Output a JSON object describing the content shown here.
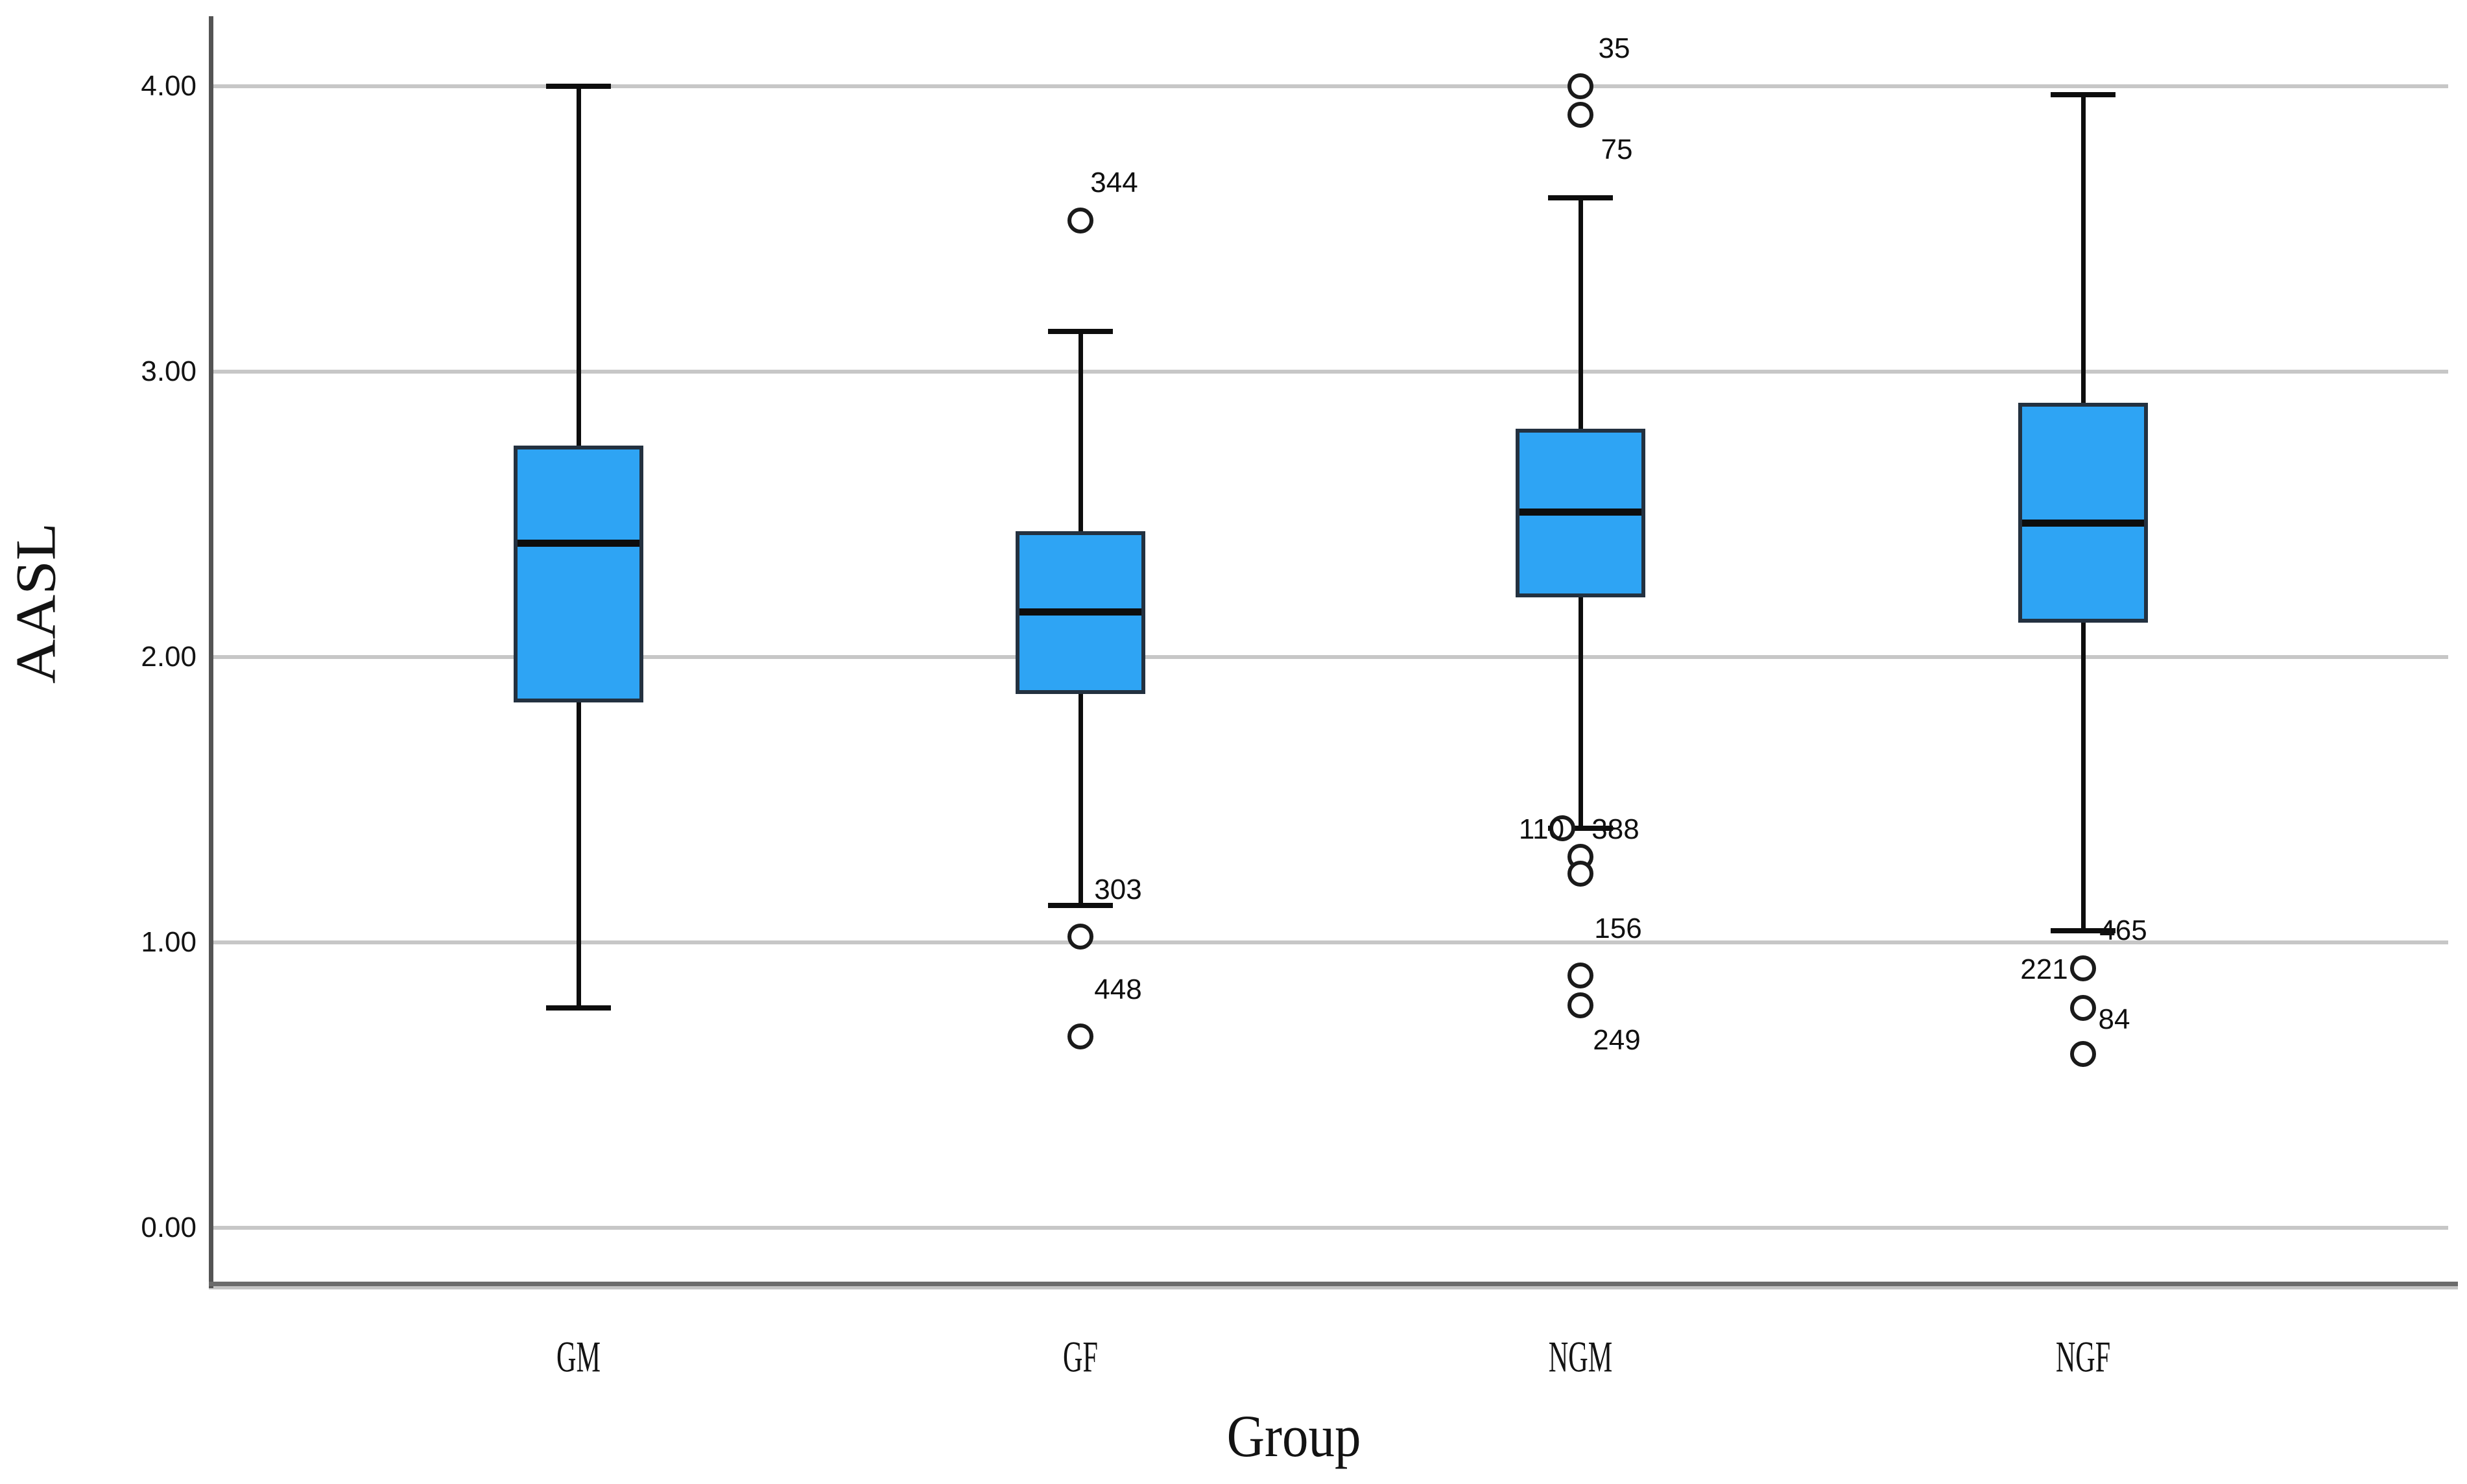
{
  "chart_data": {
    "type": "boxplot",
    "title": "",
    "xlabel": "Group",
    "ylabel": "AASL",
    "categories": [
      "GM",
      "GF",
      "NGM",
      "NGF"
    ],
    "yticks": [
      {
        "label": "0.00",
        "value": 0
      },
      {
        "label": "1.00",
        "value": 1
      },
      {
        "label": "2.00",
        "value": 2
      },
      {
        "label": "3.00",
        "value": 3
      },
      {
        "label": "4.00",
        "value": 4
      }
    ],
    "ylim": [
      -0.2,
      4.25
    ],
    "grid": "horizontal",
    "legend": "none",
    "boxes": [
      {
        "group": "GM",
        "whisker_low": 0.77,
        "q1": 1.84,
        "median": 2.4,
        "q3": 2.74,
        "whisker_high": 4.0,
        "outliers": []
      },
      {
        "group": "GF",
        "whisker_low": 1.13,
        "q1": 1.87,
        "median": 2.16,
        "q3": 2.44,
        "whisker_high": 3.14,
        "outliers": [
          {
            "value": 3.53,
            "label": "344",
            "side": "above-right"
          },
          {
            "value": 1.02,
            "label": "303",
            "side": "high-right"
          },
          {
            "value": 0.67,
            "label": "448",
            "side": "high-right"
          }
        ]
      },
      {
        "group": "NGM",
        "whisker_low": 1.4,
        "q1": 2.21,
        "median": 2.51,
        "q3": 2.8,
        "whisker_high": 3.61,
        "outliers": [
          {
            "value": 4.0,
            "label": "35",
            "side": "above-right"
          },
          {
            "value": 3.9,
            "label": "75",
            "side": "below-right"
          },
          {
            "value": 1.4,
            "label": "110",
            "side": "left",
            "marker_dx": -28
          },
          {
            "value": 1.3,
            "label": "388",
            "side": "near-right"
          },
          {
            "value": 1.24,
            "label": "",
            "side": "none"
          },
          {
            "value": 0.885,
            "label": "156",
            "side": "high-right"
          },
          {
            "value": 0.78,
            "label": "249",
            "side": "below-right"
          }
        ]
      },
      {
        "group": "NGF",
        "whisker_low": 1.04,
        "q1": 2.12,
        "median": 2.47,
        "q3": 2.89,
        "whisker_high": 3.97,
        "outliers": [
          {
            "value": 1.04,
            "label": "465",
            "side": "right",
            "marker": false
          },
          {
            "value": 0.91,
            "label": "221",
            "side": "left"
          },
          {
            "value": 0.77,
            "label": "84",
            "side": "right-below"
          },
          {
            "value": 0.61,
            "label": "",
            "side": "none"
          }
        ]
      }
    ],
    "colors": {
      "box_fill": "#2EA4F4",
      "box_border": "#233140",
      "line": "#0d0d0d",
      "marker_stroke": "#1a1a1a",
      "gridline": "#c7c7c7",
      "axis": "#545454",
      "frame_dark": "#6b6b6b",
      "frame_light": "#c4c4c4",
      "text": "#131313"
    }
  }
}
